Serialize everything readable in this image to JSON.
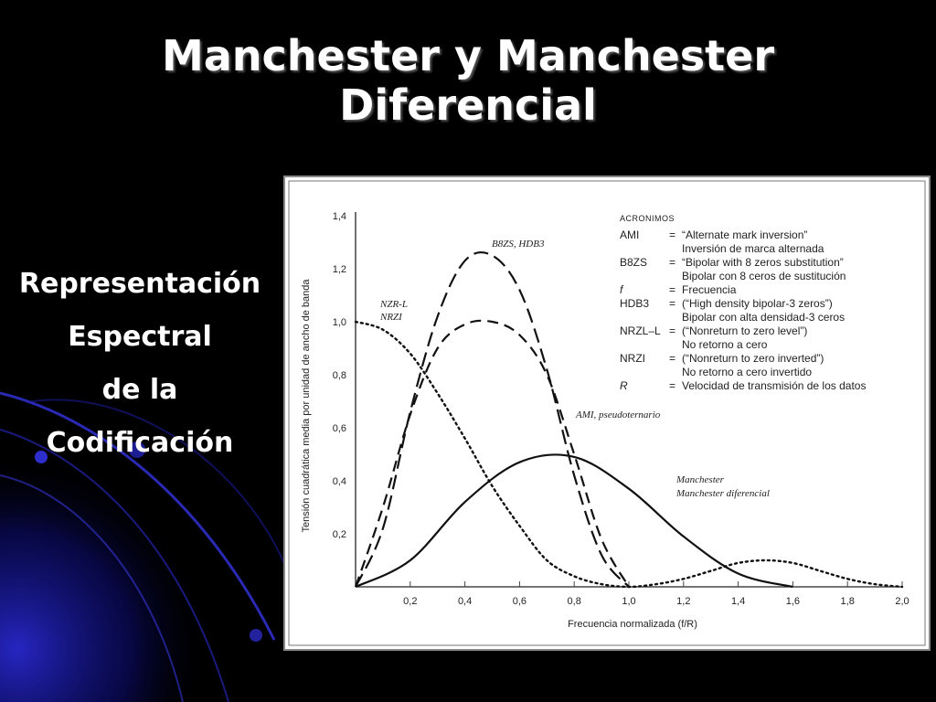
{
  "title": {
    "line1": "Manchester y Manchester",
    "line2": "Diferencial"
  },
  "side": {
    "line1": "Representación",
    "line2": "Espectral",
    "line3": "de la",
    "line4": "Codificación"
  },
  "colors": {
    "background": "#000000",
    "swirl": "#1a1ad0",
    "chart_bg": "#ffffff",
    "ink": "#111111"
  },
  "chart_data": {
    "type": "line",
    "xlabel": "Frecuencia normalizada (f/R)",
    "ylabel": "Tensión cuadrática media por unidad de ancho de banda",
    "xlim": [
      0,
      2.0
    ],
    "ylim": [
      0,
      1.4
    ],
    "xticks": [
      "0,2",
      "0,4",
      "0,6",
      "0,8",
      "1,0",
      "1,2",
      "1,4",
      "1,6",
      "1,8",
      "2,0"
    ],
    "yticks": [
      "0,2",
      "0,4",
      "0,6",
      "0,8",
      "1,0",
      "1,2",
      "1,4"
    ],
    "grid": false,
    "series": [
      {
        "name": "NZR-L, NRZI",
        "style": "dotted",
        "x": [
          0,
          0.1,
          0.2,
          0.3,
          0.4,
          0.5,
          0.6,
          0.7,
          0.8,
          0.9,
          1.0,
          1.1,
          1.2,
          1.3,
          1.4,
          1.5,
          1.6,
          1.7,
          1.8,
          1.9,
          2.0
        ],
        "y": [
          1.0,
          0.97,
          0.88,
          0.73,
          0.56,
          0.38,
          0.23,
          0.1,
          0.04,
          0.01,
          0.0,
          0.01,
          0.03,
          0.06,
          0.09,
          0.1,
          0.09,
          0.06,
          0.03,
          0.01,
          0.0
        ]
      },
      {
        "name": "B8ZS, HDB3",
        "style": "long-dash",
        "x": [
          0,
          0.1,
          0.2,
          0.3,
          0.4,
          0.5,
          0.6,
          0.7,
          0.8,
          0.9,
          1.0
        ],
        "y": [
          0.0,
          0.22,
          0.66,
          1.02,
          1.23,
          1.25,
          1.12,
          0.82,
          0.42,
          0.12,
          0.0
        ]
      },
      {
        "name": "AMI, pseudoternario",
        "style": "dash",
        "x": [
          0,
          0.1,
          0.2,
          0.3,
          0.4,
          0.5,
          0.6,
          0.7,
          0.8,
          0.9,
          1.0
        ],
        "y": [
          0.0,
          0.3,
          0.65,
          0.9,
          0.99,
          1.0,
          0.95,
          0.8,
          0.5,
          0.18,
          0.0
        ]
      },
      {
        "name": "Manchester, Manchester diferencial",
        "style": "solid",
        "x": [
          0,
          0.2,
          0.4,
          0.6,
          0.8,
          1.0,
          1.2,
          1.4,
          1.6
        ],
        "y": [
          0.0,
          0.1,
          0.32,
          0.47,
          0.49,
          0.37,
          0.19,
          0.05,
          0.0
        ]
      }
    ],
    "series_labels": {
      "nrz_line1": "NZR-L",
      "nrz_line2": "NRZI",
      "b8zs": "B8ZS, HDB3",
      "ami": "AMI, pseudoternario",
      "man_line1": "Manchester",
      "man_line2": "Manchester diferencial"
    },
    "legend": {
      "heading": "ACRONIMOS",
      "rows": [
        {
          "key": "AMI",
          "sep": "=",
          "line1": "“Alternate mark inversion”",
          "line2": "Inversión de marca alternada"
        },
        {
          "key": "B8ZS",
          "sep": "=",
          "line1": "“Bipolar with 8 zeros substitution”",
          "line2": "Bipolar con 8 ceros de sustitución"
        },
        {
          "key": "f",
          "sep": "=",
          "line1": "Frecuencia",
          "line2": ""
        },
        {
          "key": "HDB3",
          "sep": "=",
          "line1": "(“High density bipolar-3 zeros”)",
          "line2": "Bipolar con alta densidad-3 ceros"
        },
        {
          "key": "NRZL–L",
          "sep": "=",
          "line1": "(“Nonreturn to zero level”)",
          "line2": "No retorno a cero"
        },
        {
          "key": "NRZI",
          "sep": "=",
          "line1": "(“Nonreturn to zero inverted”)",
          "line2": "No retorno a cero invertido"
        },
        {
          "key": "R",
          "sep": "=",
          "line1": "Velocidad de transmisión de los datos",
          "line2": ""
        }
      ]
    }
  }
}
